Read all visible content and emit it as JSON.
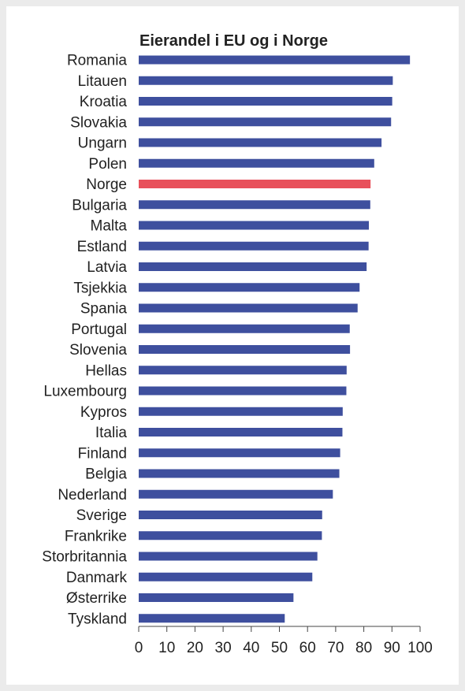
{
  "chart_data": {
    "type": "bar",
    "orientation": "horizontal",
    "title": "Eierandel i EU og i Norge",
    "xlabel": "",
    "ylabel": "",
    "xlim": [
      0,
      100
    ],
    "x_ticks": [
      "0",
      "10",
      "20",
      "30",
      "40",
      "50",
      "60",
      "70",
      "80",
      "90",
      "100"
    ],
    "grid": false,
    "categories": [
      "Romania",
      "Litauen",
      "Kroatia",
      "Slovakia",
      "Ungarn",
      "Polen",
      "Norge",
      "Bulgaria",
      "Malta",
      "Estland",
      "Latvia",
      "Tsjekkia",
      "Spania",
      "Portugal",
      "Slovenia",
      "Hellas",
      "Luxembourg",
      "Kypros",
      "Italia",
      "Finland",
      "Belgia",
      "Nederland",
      "Sverige",
      "Frankrike",
      "Storbritannia",
      "Danmark",
      "Østerrike",
      "Tyskland"
    ],
    "values": [
      96.4,
      90.3,
      90.1,
      89.7,
      86.3,
      83.7,
      82.4,
      82.3,
      81.8,
      81.7,
      81.0,
      78.5,
      77.8,
      75.0,
      75.1,
      73.9,
      73.8,
      72.5,
      72.4,
      71.6,
      71.3,
      69.0,
      65.2,
      65.1,
      63.5,
      61.7,
      55.0,
      51.9
    ],
    "colors": {
      "default": "#3e4f9e",
      "highlight": "#e8505b",
      "axis": "#444444"
    },
    "highlight_category": "Norge"
  }
}
